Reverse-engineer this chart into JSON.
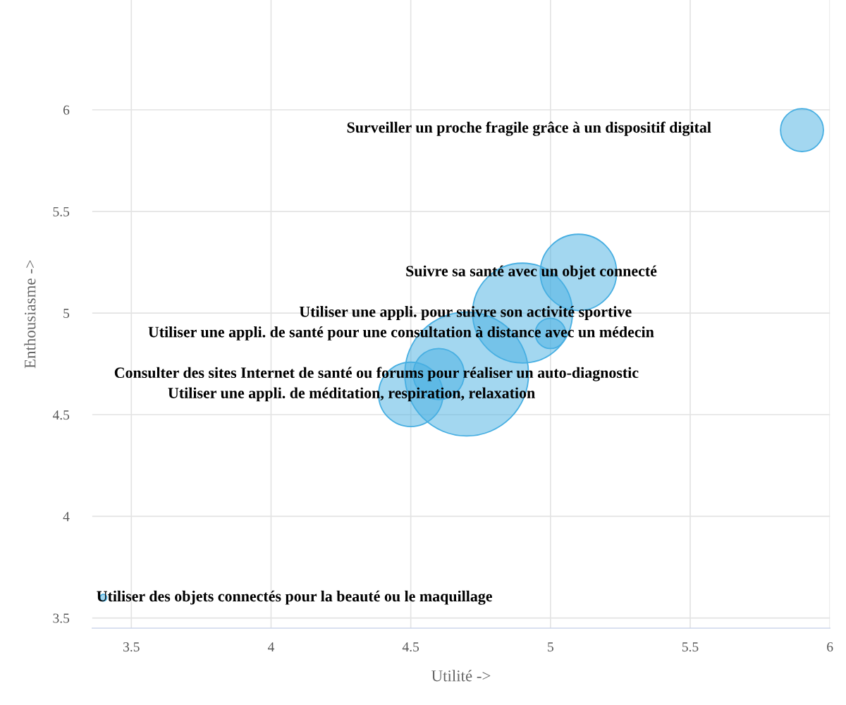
{
  "chart_data": {
    "type": "bubble",
    "xlabel": "Utilité ->",
    "ylabel": "Enthousiasme ->",
    "x": [
      5.9,
      5.1,
      4.9,
      5.0,
      4.7,
      4.6,
      4.5,
      3.4
    ],
    "values": [
      5.9,
      5.2,
      5.0,
      4.9,
      4.7,
      4.7,
      4.6,
      3.6
    ],
    "sizes": [
      0.12,
      0.38,
      0.65,
      0.06,
      1,
      0.17,
      0.27,
      0.003
    ],
    "color": "#48afe2",
    "annotations": [
      "Surveiller un proche fragile grâce à un dispositif digital",
      {
        "text": "Suivre sa santé avec un objet connecté",
        "x": 5.1,
        "y": 5.2
      },
      {
        "text": "Utiliser une appli. pour suivre son activité sportive",
        "x": 4.9,
        "y": 5.0
      },
      {
        "text": "Utiliser une appli. de santé pour une consultation à distance avec un médecin",
        "x": 5.0,
        "y": 4.9
      },
      {
        "text": "Consulter des sites Internet de santé ou forums pour réaliser un auto-diagnostic",
        "x": 4.7,
        "y": 4.7
      },
      {
        "text": "Utiliser une appli. de méditation, respiration, relaxation",
        "x": 4.5,
        "y": 4.6
      },
      {
        "text": "Utiliser des objets connectés pour la beauté ou le maquillage",
        "x": 3.4,
        "y": 3.6
      }
    ],
    "xlim": [
      3.36,
      6
    ],
    "ylim": [
      3.45,
      6.54
    ],
    "xticks": [
      3.5,
      4,
      4.5,
      5,
      5.5,
      6
    ],
    "yticks": [
      3.5,
      4,
      4.5,
      5,
      5.5,
      6
    ],
    "grid": true
  }
}
